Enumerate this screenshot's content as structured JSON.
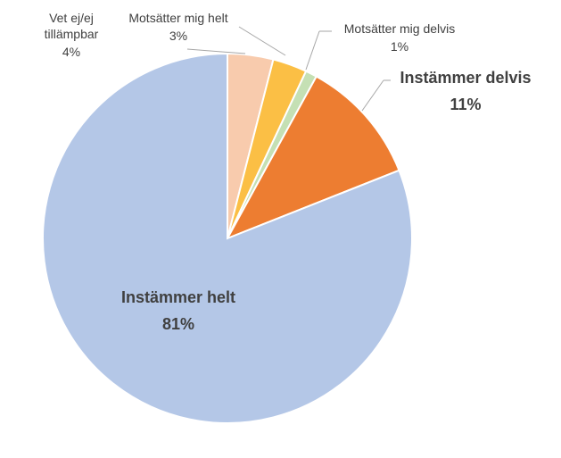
{
  "chart_data": {
    "type": "pie",
    "categories": [
      "Vet ej/ej tillämpbar",
      "Motsätter mig helt",
      "Motsätter mig delvis",
      "Instämmer delvis",
      "Instämmer helt"
    ],
    "values": [
      4,
      3,
      1,
      11,
      81
    ],
    "value_labels": [
      "4%",
      "3%",
      "1%",
      "11%",
      "81%"
    ],
    "colors": [
      "#f8cbad",
      "#fbbf45",
      "#c5e0b4",
      "#ed7d31",
      "#b4c7e7"
    ]
  }
}
